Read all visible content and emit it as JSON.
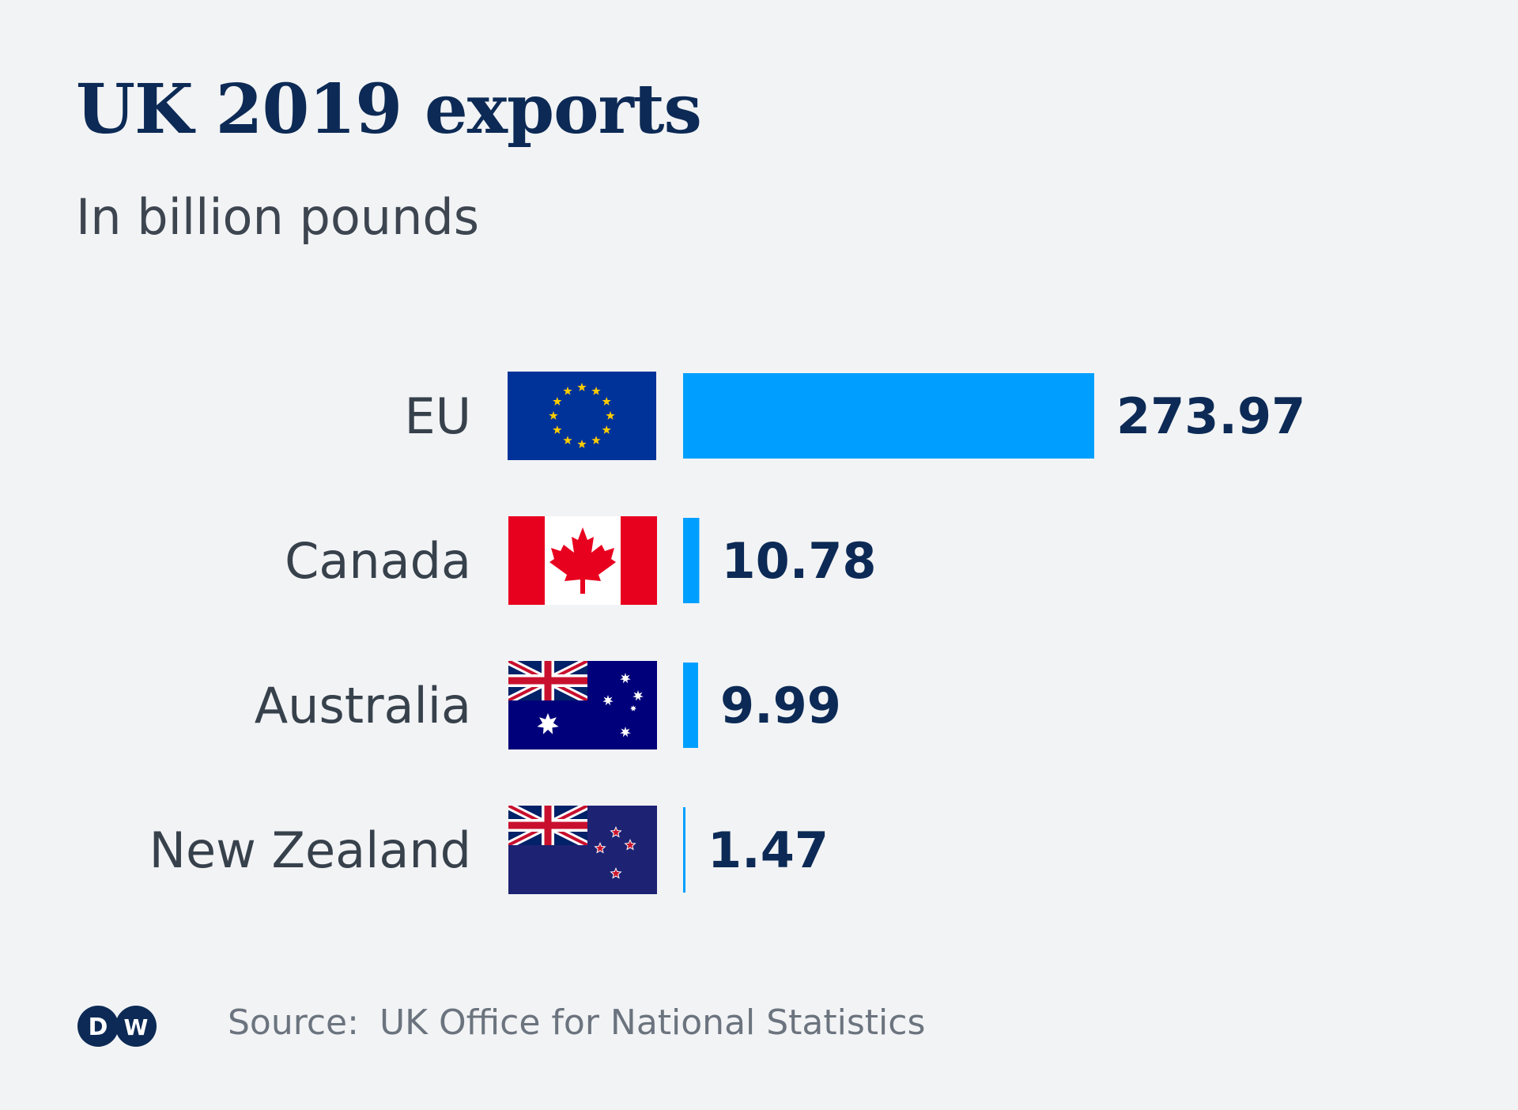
{
  "header": {
    "title": "UK 2019 exports",
    "subtitle": "In billion pounds"
  },
  "chart_data": {
    "type": "bar",
    "orientation": "horizontal",
    "title": "UK 2019 exports",
    "subtitle": "In billion pounds",
    "categories": [
      "EU",
      "Canada",
      "Australia",
      "New Zealand"
    ],
    "values": [
      273.97,
      10.78,
      9.99,
      1.47
    ],
    "value_labels": [
      "273.97",
      "10.78",
      "9.99",
      "1.47"
    ],
    "flags": [
      "eu-flag-icon",
      "canada-flag-icon",
      "australia-flag-icon",
      "new-zealand-flag-icon"
    ],
    "xlim": [
      0,
      273.97
    ],
    "bar_color": "#009fff",
    "grid": false
  },
  "footer": {
    "source_label": "Source:",
    "source_text": "UK Office for National Statistics",
    "logo": "dw-logo-icon",
    "logo_text": "DW"
  },
  "colors": {
    "background": "#f2f3f5",
    "title": "#0c2a55",
    "bar": "#009fff"
  }
}
